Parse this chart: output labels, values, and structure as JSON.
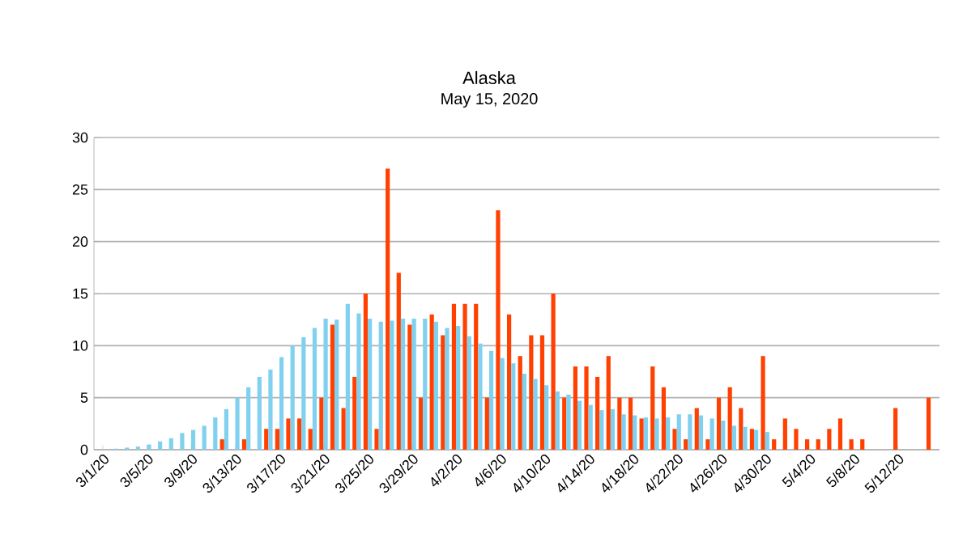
{
  "chart_data": {
    "type": "bar",
    "title": "Alaska",
    "subtitle": "May 15, 2020",
    "categories": [
      "3/1/20",
      null,
      null,
      null,
      "3/5/20",
      null,
      null,
      null,
      "3/9/20",
      null,
      null,
      null,
      "3/13/20",
      null,
      null,
      null,
      "3/17/20",
      null,
      null,
      null,
      "3/21/20",
      null,
      null,
      null,
      "3/25/20",
      null,
      null,
      null,
      "3/29/20",
      null,
      null,
      null,
      "4/2/20",
      null,
      null,
      null,
      "4/6/20",
      null,
      null,
      null,
      "4/10/20",
      null,
      null,
      null,
      "4/14/20",
      null,
      null,
      null,
      "4/18/20",
      null,
      null,
      null,
      "4/22/20",
      null,
      null,
      null,
      "4/26/20",
      null,
      null,
      null,
      "4/30/20",
      null,
      null,
      null,
      "5/4/20",
      null,
      null,
      null,
      "5/8/20",
      null,
      null,
      null,
      "5/12/20",
      null,
      null,
      null
    ],
    "series": [
      {
        "color": "#ff4000",
        "values": [
          0,
          0,
          0,
          0,
          0,
          0,
          0,
          0,
          0,
          0,
          0,
          1,
          0,
          1,
          0,
          2,
          2,
          3,
          3,
          2,
          5,
          12,
          4,
          7,
          15,
          2,
          27,
          17,
          12,
          5,
          13,
          11,
          14,
          14,
          14,
          5,
          23,
          13,
          9,
          11,
          11,
          15,
          5,
          8,
          8,
          7,
          9,
          5,
          5,
          3,
          8,
          6,
          2,
          1,
          4,
          1,
          5,
          6,
          4,
          2,
          9,
          1,
          3,
          2,
          1,
          1,
          2,
          3,
          1,
          1,
          0,
          0,
          4,
          0,
          0,
          5
        ]
      },
      {
        "color": "#80d0f0",
        "values": [
          0,
          0.1,
          0.2,
          0.3,
          0.5,
          0.8,
          1.1,
          1.6,
          1.9,
          2.3,
          3.1,
          3.9,
          5,
          6,
          7,
          7.7,
          8.9,
          10,
          10.8,
          11.7,
          12.6,
          12.5,
          14,
          13.1,
          12.6,
          12.3,
          12.4,
          12.6,
          12.6,
          12.6,
          12.3,
          11.7,
          11.9,
          10.9,
          10.2,
          9.5,
          8.8,
          8.3,
          7.3,
          6.8,
          6.2,
          5.6,
          5.3,
          4.7,
          4.3,
          3.8,
          3.9,
          3.4,
          3.3,
          3.1,
          3,
          3.1,
          3.4,
          3.4,
          3.3,
          3,
          2.8,
          2.3,
          2.2,
          1.9,
          1.7,
          null,
          null,
          null,
          null,
          null,
          null,
          null,
          null,
          null,
          null,
          null,
          null,
          null,
          null,
          null
        ]
      }
    ],
    "ylim": [
      0,
      30
    ],
    "yticks": [
      0,
      5,
      10,
      15,
      20,
      25,
      30
    ],
    "grid": "y"
  }
}
